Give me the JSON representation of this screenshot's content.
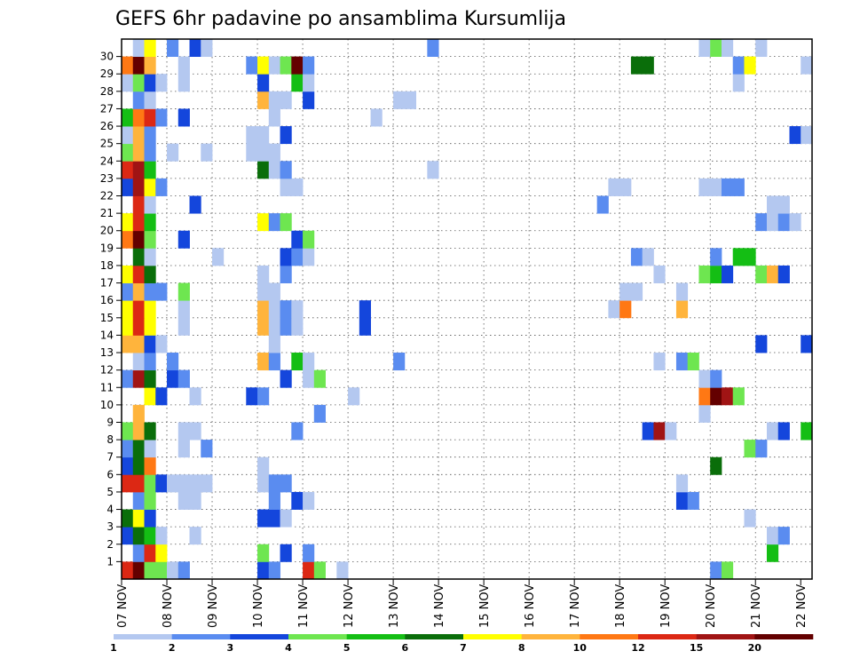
{
  "chart_data": {
    "type": "heatmap",
    "title": "GEFS 6hr padavine po ansamblima Kursumlija",
    "xlabel": "",
    "ylabel": "",
    "x_ticks": [
      "07 NOV",
      "08 NOV",
      "09 NOV",
      "10 NOV",
      "11 NOV",
      "12 NOV",
      "13 NOV",
      "14 NOV",
      "15 NOV",
      "16 NOV",
      "17 NOV",
      "18 NOV",
      "19 NOV",
      "20 NOV",
      "21 NOV",
      "22 NOV"
    ],
    "y_ticks": [
      "1",
      "2",
      "3",
      "4",
      "5",
      "6",
      "7",
      "8",
      "9",
      "10",
      "11",
      "12",
      "13",
      "14",
      "15",
      "16",
      "17",
      "18",
      "19",
      "20",
      "21",
      "22",
      "23",
      "24",
      "25",
      "26",
      "27",
      "28",
      "29",
      "30"
    ],
    "time_steps": 61,
    "members": 31,
    "legend": {
      "labels": [
        "1",
        "2",
        "3",
        "4",
        "5",
        "6",
        "7",
        "8",
        "10",
        "12",
        "15",
        "20"
      ],
      "colors": [
        "#b4c8f0",
        "#5a8cf0",
        "#1446dc",
        "#6ee650",
        "#14be14",
        "#0a6e0a",
        "#ffff00",
        "#ffb43c",
        "#ff7814",
        "#dc2814",
        "#a01414",
        "#640000"
      ]
    },
    "cells": [
      [
        0,
        0,
        10
      ],
      [
        1,
        0,
        12
      ],
      [
        2,
        0,
        4
      ],
      [
        3,
        0,
        4
      ],
      [
        4,
        0,
        1
      ],
      [
        5,
        0,
        2
      ],
      [
        12,
        0,
        3
      ],
      [
        13,
        0,
        2
      ],
      [
        16,
        0,
        10
      ],
      [
        17,
        0,
        4
      ],
      [
        19,
        0,
        1
      ],
      [
        52,
        0,
        2
      ],
      [
        53,
        0,
        4
      ],
      [
        1,
        1,
        2
      ],
      [
        2,
        1,
        10
      ],
      [
        3,
        1,
        7
      ],
      [
        12,
        1,
        4
      ],
      [
        14,
        1,
        3
      ],
      [
        16,
        1,
        2
      ],
      [
        57,
        1,
        5
      ],
      [
        0,
        2,
        3
      ],
      [
        1,
        2,
        6
      ],
      [
        2,
        2,
        5
      ],
      [
        3,
        2,
        1
      ],
      [
        6,
        2,
        1
      ],
      [
        57,
        2,
        1
      ],
      [
        58,
        2,
        2
      ],
      [
        0,
        3,
        6
      ],
      [
        1,
        3,
        7
      ],
      [
        2,
        3,
        3
      ],
      [
        12,
        3,
        3
      ],
      [
        13,
        3,
        3
      ],
      [
        14,
        3,
        1
      ],
      [
        55,
        3,
        1
      ],
      [
        1,
        4,
        2
      ],
      [
        2,
        4,
        4
      ],
      [
        5,
        4,
        1
      ],
      [
        6,
        4,
        1
      ],
      [
        13,
        4,
        2
      ],
      [
        15,
        4,
        3
      ],
      [
        16,
        4,
        1
      ],
      [
        49,
        4,
        3
      ],
      [
        50,
        4,
        2
      ],
      [
        0,
        5,
        10
      ],
      [
        1,
        5,
        10
      ],
      [
        2,
        5,
        4
      ],
      [
        3,
        5,
        3
      ],
      [
        4,
        5,
        1
      ],
      [
        5,
        5,
        1
      ],
      [
        6,
        5,
        1
      ],
      [
        7,
        5,
        1
      ],
      [
        12,
        5,
        1
      ],
      [
        13,
        5,
        2
      ],
      [
        14,
        5,
        2
      ],
      [
        49,
        5,
        1
      ],
      [
        0,
        6,
        3
      ],
      [
        1,
        6,
        6
      ],
      [
        2,
        6,
        9
      ],
      [
        12,
        6,
        1
      ],
      [
        52,
        6,
        6
      ],
      [
        0,
        7,
        2
      ],
      [
        1,
        7,
        6
      ],
      [
        2,
        7,
        1
      ],
      [
        5,
        7,
        1
      ],
      [
        7,
        7,
        2
      ],
      [
        55,
        7,
        4
      ],
      [
        56,
        7,
        2
      ],
      [
        0,
        8,
        4
      ],
      [
        1,
        8,
        8
      ],
      [
        2,
        8,
        6
      ],
      [
        5,
        8,
        1
      ],
      [
        6,
        8,
        1
      ],
      [
        15,
        8,
        2
      ],
      [
        46,
        8,
        3
      ],
      [
        47,
        8,
        11
      ],
      [
        48,
        8,
        1
      ],
      [
        57,
        8,
        1
      ],
      [
        58,
        8,
        3
      ],
      [
        60,
        8,
        5
      ],
      [
        1,
        9,
        8
      ],
      [
        17,
        9,
        2
      ],
      [
        51,
        9,
        1
      ],
      [
        2,
        10,
        7
      ],
      [
        3,
        10,
        3
      ],
      [
        6,
        10,
        1
      ],
      [
        11,
        10,
        3
      ],
      [
        12,
        10,
        2
      ],
      [
        20,
        10,
        1
      ],
      [
        51,
        10,
        9
      ],
      [
        52,
        10,
        12
      ],
      [
        53,
        10,
        11
      ],
      [
        54,
        10,
        4
      ],
      [
        0,
        11,
        2
      ],
      [
        1,
        11,
        11
      ],
      [
        2,
        11,
        6
      ],
      [
        4,
        11,
        3
      ],
      [
        5,
        11,
        2
      ],
      [
        14,
        11,
        3
      ],
      [
        16,
        11,
        1
      ],
      [
        17,
        11,
        4
      ],
      [
        51,
        11,
        1
      ],
      [
        52,
        11,
        2
      ],
      [
        1,
        12,
        1
      ],
      [
        2,
        12,
        2
      ],
      [
        4,
        12,
        2
      ],
      [
        12,
        12,
        8
      ],
      [
        13,
        12,
        2
      ],
      [
        15,
        12,
        5
      ],
      [
        16,
        12,
        1
      ],
      [
        24,
        12,
        2
      ],
      [
        47,
        12,
        1
      ],
      [
        49,
        12,
        2
      ],
      [
        50,
        12,
        4
      ],
      [
        0,
        13,
        8
      ],
      [
        1,
        13,
        8
      ],
      [
        2,
        13,
        3
      ],
      [
        3,
        13,
        1
      ],
      [
        13,
        13,
        1
      ],
      [
        56,
        13,
        3
      ],
      [
        60,
        13,
        3
      ],
      [
        0,
        14,
        7
      ],
      [
        1,
        14,
        10
      ],
      [
        2,
        14,
        7
      ],
      [
        5,
        14,
        1
      ],
      [
        12,
        14,
        8
      ],
      [
        13,
        14,
        1
      ],
      [
        14,
        14,
        2
      ],
      [
        15,
        14,
        1
      ],
      [
        21,
        14,
        3
      ],
      [
        0,
        15,
        7
      ],
      [
        1,
        15,
        10
      ],
      [
        2,
        15,
        7
      ],
      [
        5,
        15,
        1
      ],
      [
        12,
        15,
        8
      ],
      [
        13,
        15,
        1
      ],
      [
        14,
        15,
        2
      ],
      [
        15,
        15,
        1
      ],
      [
        21,
        15,
        3
      ],
      [
        43,
        15,
        1
      ],
      [
        44,
        15,
        9
      ],
      [
        49,
        15,
        8
      ],
      [
        0,
        16,
        2
      ],
      [
        1,
        16,
        8
      ],
      [
        2,
        16,
        2
      ],
      [
        3,
        16,
        2
      ],
      [
        5,
        16,
        4
      ],
      [
        12,
        16,
        1
      ],
      [
        13,
        16,
        1
      ],
      [
        44,
        16,
        1
      ],
      [
        45,
        16,
        1
      ],
      [
        49,
        16,
        1
      ],
      [
        0,
        17,
        7
      ],
      [
        1,
        17,
        10
      ],
      [
        2,
        17,
        6
      ],
      [
        12,
        17,
        1
      ],
      [
        14,
        17,
        2
      ],
      [
        47,
        17,
        1
      ],
      [
        51,
        17,
        4
      ],
      [
        52,
        17,
        5
      ],
      [
        53,
        17,
        3
      ],
      [
        56,
        17,
        4
      ],
      [
        57,
        17,
        8
      ],
      [
        58,
        17,
        3
      ],
      [
        1,
        18,
        6
      ],
      [
        2,
        18,
        1
      ],
      [
        8,
        18,
        1
      ],
      [
        14,
        18,
        3
      ],
      [
        15,
        18,
        2
      ],
      [
        16,
        18,
        1
      ],
      [
        45,
        18,
        2
      ],
      [
        46,
        18,
        1
      ],
      [
        52,
        18,
        2
      ],
      [
        54,
        18,
        5
      ],
      [
        55,
        18,
        5
      ],
      [
        0,
        19,
        9
      ],
      [
        1,
        19,
        12
      ],
      [
        2,
        19,
        4
      ],
      [
        5,
        19,
        3
      ],
      [
        15,
        19,
        3
      ],
      [
        16,
        19,
        4
      ],
      [
        0,
        20,
        7
      ],
      [
        1,
        20,
        10
      ],
      [
        2,
        20,
        5
      ],
      [
        12,
        20,
        7
      ],
      [
        13,
        20,
        2
      ],
      [
        14,
        20,
        4
      ],
      [
        56,
        20,
        2
      ],
      [
        57,
        20,
        1
      ],
      [
        58,
        20,
        2
      ],
      [
        59,
        20,
        1
      ],
      [
        1,
        21,
        10
      ],
      [
        2,
        21,
        1
      ],
      [
        6,
        21,
        3
      ],
      [
        42,
        21,
        2
      ],
      [
        57,
        21,
        1
      ],
      [
        58,
        21,
        1
      ],
      [
        0,
        22,
        3
      ],
      [
        1,
        22,
        11
      ],
      [
        2,
        22,
        7
      ],
      [
        3,
        22,
        2
      ],
      [
        14,
        22,
        1
      ],
      [
        15,
        22,
        1
      ],
      [
        43,
        22,
        1
      ],
      [
        44,
        22,
        1
      ],
      [
        51,
        22,
        1
      ],
      [
        52,
        22,
        1
      ],
      [
        53,
        22,
        2
      ],
      [
        54,
        22,
        2
      ],
      [
        0,
        23,
        10
      ],
      [
        1,
        23,
        11
      ],
      [
        2,
        23,
        5
      ],
      [
        12,
        23,
        6
      ],
      [
        13,
        23,
        1
      ],
      [
        14,
        23,
        2
      ],
      [
        27,
        23,
        1
      ],
      [
        0,
        24,
        4
      ],
      [
        1,
        24,
        8
      ],
      [
        2,
        24,
        2
      ],
      [
        4,
        24,
        1
      ],
      [
        7,
        24,
        1
      ],
      [
        11,
        24,
        1
      ],
      [
        12,
        24,
        1
      ],
      [
        13,
        24,
        1
      ],
      [
        0,
        25,
        1
      ],
      [
        1,
        25,
        8
      ],
      [
        2,
        25,
        2
      ],
      [
        11,
        25,
        1
      ],
      [
        12,
        25,
        1
      ],
      [
        14,
        25,
        3
      ],
      [
        59,
        25,
        3
      ],
      [
        60,
        25,
        1
      ],
      [
        0,
        26,
        5
      ],
      [
        1,
        26,
        9
      ],
      [
        2,
        26,
        10
      ],
      [
        3,
        26,
        2
      ],
      [
        5,
        26,
        3
      ],
      [
        13,
        26,
        1
      ],
      [
        22,
        26,
        1
      ],
      [
        1,
        27,
        2
      ],
      [
        2,
        27,
        1
      ],
      [
        12,
        27,
        8
      ],
      [
        13,
        27,
        1
      ],
      [
        14,
        27,
        1
      ],
      [
        16,
        27,
        3
      ],
      [
        24,
        27,
        1
      ],
      [
        25,
        27,
        1
      ],
      [
        0,
        28,
        1
      ],
      [
        1,
        28,
        4
      ],
      [
        2,
        28,
        3
      ],
      [
        3,
        28,
        1
      ],
      [
        5,
        28,
        1
      ],
      [
        12,
        28,
        3
      ],
      [
        15,
        28,
        5
      ],
      [
        16,
        28,
        1
      ],
      [
        54,
        28,
        1
      ],
      [
        0,
        29,
        9
      ],
      [
        1,
        29,
        12
      ],
      [
        2,
        29,
        8
      ],
      [
        5,
        29,
        1
      ],
      [
        11,
        29,
        2
      ],
      [
        12,
        29,
        7
      ],
      [
        13,
        29,
        1
      ],
      [
        14,
        29,
        4
      ],
      [
        15,
        29,
        12
      ],
      [
        16,
        29,
        2
      ],
      [
        45,
        29,
        6
      ],
      [
        46,
        29,
        6
      ],
      [
        54,
        29,
        2
      ],
      [
        55,
        29,
        7
      ],
      [
        60,
        29,
        1
      ],
      [
        1,
        30,
        1
      ],
      [
        2,
        30,
        7
      ],
      [
        4,
        30,
        2
      ],
      [
        6,
        30,
        3
      ],
      [
        7,
        30,
        1
      ],
      [
        27,
        30,
        2
      ],
      [
        51,
        30,
        1
      ],
      [
        52,
        30,
        4
      ],
      [
        53,
        30,
        1
      ],
      [
        56,
        30,
        1
      ]
    ]
  }
}
